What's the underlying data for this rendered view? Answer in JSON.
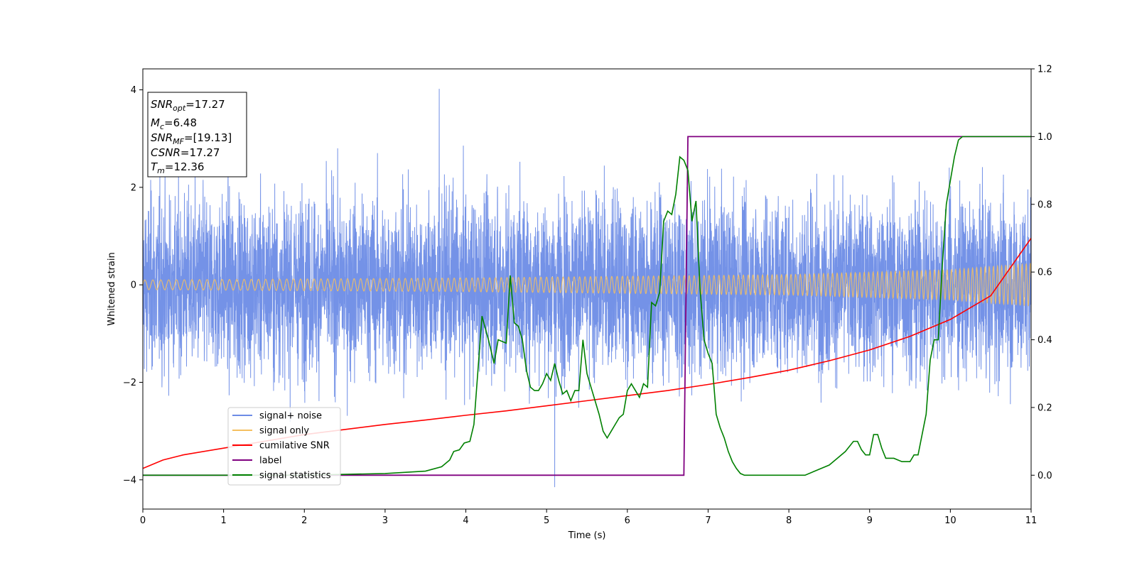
{
  "chart_data": {
    "type": "line",
    "xlabel": "Time (s)",
    "ylabel": "Whitened strain",
    "xlim": [
      0,
      11
    ],
    "ylim": [
      -4.6,
      4.43
    ],
    "ylim_right": [
      -0.1,
      1.2
    ],
    "xticks": [
      "0",
      "1",
      "2",
      "3",
      "4",
      "5",
      "6",
      "7",
      "8",
      "9",
      "10",
      "11"
    ],
    "yticks": [
      "-4",
      "-2",
      "0",
      "2",
      "4"
    ],
    "yticks_right": [
      "0.0",
      "0.2",
      "0.4",
      "0.6",
      "0.8",
      "1.0",
      "1.2"
    ],
    "legend_position": "lower-left",
    "annotation": {
      "lines": [
        {
          "name": "SNR",
          "sub": "opt",
          "value": "=17.27"
        },
        {
          "name": "M",
          "sub": "c",
          "value": "=6.48"
        },
        {
          "name": "SNR",
          "sub": "MF",
          "value": "=[19.13]"
        },
        {
          "name": "CSNR",
          "sub": "",
          "value": "=17.27"
        },
        {
          "name": "T",
          "sub": "m",
          "value": "=12.36"
        }
      ]
    },
    "series": [
      {
        "name": "signal+ noise",
        "color": "#6d8ce6",
        "axis": "left",
        "noise_sigma": 1.15,
        "peak_max": 4.02,
        "peak_min": -4.15
      },
      {
        "name": "signal only",
        "color": "#f5c060",
        "axis": "left",
        "envelope": {
          "x": [
            0,
            4,
            8,
            10,
            11
          ],
          "y": [
            0.1,
            0.14,
            0.21,
            0.31,
            0.44
          ]
        }
      },
      {
        "name": "cumilative SNR",
        "color": "#ff0000",
        "axis": "right",
        "x": [
          0,
          0.25,
          0.5,
          1,
          1.5,
          2,
          2.5,
          3,
          3.5,
          4,
          4.5,
          5,
          5.5,
          6,
          6.5,
          7,
          7.5,
          8,
          8.5,
          9,
          9.5,
          10,
          10.5,
          11
        ],
        "y": [
          0.02,
          0.045,
          0.06,
          0.08,
          0.1,
          0.12,
          0.135,
          0.15,
          0.163,
          0.177,
          0.19,
          0.205,
          0.22,
          0.235,
          0.25,
          0.268,
          0.288,
          0.31,
          0.338,
          0.37,
          0.41,
          0.46,
          0.53,
          0.7
        ]
      },
      {
        "name": "label",
        "color": "#800080",
        "axis": "right",
        "x": [
          0,
          6.7,
          6.75,
          11
        ],
        "y": [
          0.0,
          0.0,
          1.0,
          1.0
        ]
      },
      {
        "name": "signal statistics",
        "color": "#008000",
        "axis": "right",
        "x": [
          0,
          1,
          2,
          3,
          3.5,
          3.7,
          3.8,
          3.85,
          3.92,
          3.98,
          4.05,
          4.1,
          4.2,
          4.28,
          4.35,
          4.4,
          4.5,
          4.55,
          4.6,
          4.65,
          4.7,
          4.75,
          4.8,
          4.85,
          4.9,
          4.95,
          5.0,
          5.05,
          5.1,
          5.15,
          5.2,
          5.25,
          5.3,
          5.35,
          5.4,
          5.45,
          5.5,
          5.55,
          5.6,
          5.65,
          5.7,
          5.75,
          5.8,
          5.85,
          5.9,
          5.95,
          6.0,
          6.05,
          6.1,
          6.15,
          6.2,
          6.25,
          6.3,
          6.35,
          6.4,
          6.45,
          6.5,
          6.55,
          6.6,
          6.65,
          6.7,
          6.75,
          6.8,
          6.85,
          6.9,
          6.95,
          7.0,
          7.05,
          7.1,
          7.15,
          7.2,
          7.25,
          7.3,
          7.35,
          7.4,
          7.45,
          7.5,
          7.6,
          7.8,
          8.0,
          8.2,
          8.4,
          8.5,
          8.55,
          8.6,
          8.7,
          8.8,
          8.85,
          8.9,
          8.95,
          9.0,
          9.05,
          9.1,
          9.15,
          9.2,
          9.3,
          9.4,
          9.5,
          9.55,
          9.6,
          9.65,
          9.7,
          9.75,
          9.8,
          9.85,
          9.9,
          9.95,
          10.0,
          10.05,
          10.1,
          10.15,
          10.2,
          10.25,
          10.3,
          10.5,
          11
        ],
        "y": [
          0.0,
          0.0,
          0.0,
          0.005,
          0.012,
          0.025,
          0.045,
          0.07,
          0.075,
          0.095,
          0.1,
          0.15,
          0.47,
          0.4,
          0.33,
          0.4,
          0.39,
          0.59,
          0.45,
          0.44,
          0.4,
          0.31,
          0.26,
          0.25,
          0.25,
          0.27,
          0.3,
          0.28,
          0.33,
          0.28,
          0.24,
          0.25,
          0.22,
          0.25,
          0.25,
          0.4,
          0.3,
          0.26,
          0.22,
          0.18,
          0.13,
          0.11,
          0.13,
          0.15,
          0.17,
          0.18,
          0.25,
          0.27,
          0.25,
          0.23,
          0.27,
          0.26,
          0.51,
          0.5,
          0.54,
          0.75,
          0.78,
          0.77,
          0.83,
          0.94,
          0.93,
          0.9,
          0.75,
          0.81,
          0.55,
          0.4,
          0.36,
          0.33,
          0.18,
          0.14,
          0.11,
          0.07,
          0.04,
          0.02,
          0.005,
          0.0,
          0.0,
          0.0,
          0.0,
          0.0,
          0.0,
          0.02,
          0.03,
          0.04,
          0.05,
          0.07,
          0.1,
          0.1,
          0.075,
          0.06,
          0.06,
          0.12,
          0.12,
          0.08,
          0.05,
          0.05,
          0.04,
          0.04,
          0.06,
          0.06,
          0.12,
          0.18,
          0.34,
          0.4,
          0.4,
          0.62,
          0.8,
          0.87,
          0.94,
          0.99,
          1.0,
          1.0,
          1.0,
          1.0,
          1.0,
          1.0
        ]
      }
    ]
  }
}
